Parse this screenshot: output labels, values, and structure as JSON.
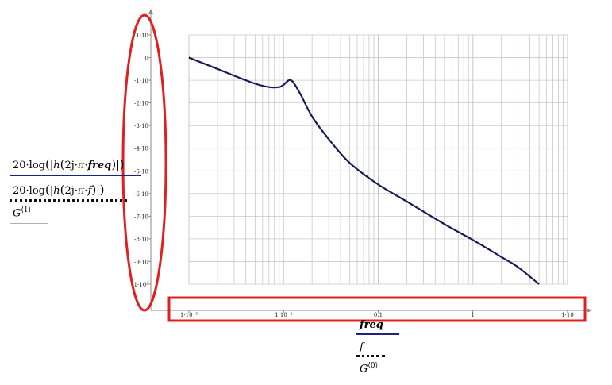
{
  "colors": {
    "series_line": "#1a237e",
    "series_dots": "#111111",
    "grid": "#c8c8c8",
    "annotation": "#e02020",
    "axis": "#888888"
  },
  "legend_y": {
    "series1": "20·log(|h(2j·π·freq)|)",
    "series2": "20·log(|h(2j·π·f)|)",
    "series3": "G(1)"
  },
  "legend_x": {
    "series1": "freq",
    "series2": "f",
    "series3": "G(0)"
  },
  "chart_data": {
    "type": "line",
    "x_scale": "log",
    "xlim": [
      0.001,
      10
    ],
    "ylim": [
      -100,
      0
    ],
    "grid": true,
    "x_ticks": [
      "1·10⁻³",
      "1·10⁻²",
      "0.1",
      "1",
      "1·10"
    ],
    "y_ticks": [
      "1·10",
      "0",
      "-1·10",
      "-2·10",
      "-3·10",
      "-4·10",
      "-5·10",
      "-6·10",
      "-7·10",
      "-8·10",
      "-9·10",
      "-1·10²"
    ],
    "series": [
      {
        "x": [
          0.001,
          0.002,
          0.003,
          0.005,
          0.007,
          0.009,
          0.01,
          0.012,
          0.015,
          0.02,
          0.03,
          0.05,
          0.1,
          0.2,
          0.5,
          1,
          2,
          3,
          5
        ],
        "y": [
          0,
          -5,
          -8,
          -11.5,
          -13,
          -13,
          -12,
          -10,
          -16,
          -26,
          -36,
          -46.5,
          -56,
          -63.5,
          -73.5,
          -80.5,
          -88,
          -92.5,
          -100
        ]
      }
    ]
  }
}
